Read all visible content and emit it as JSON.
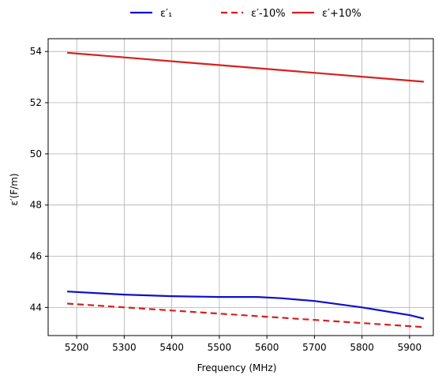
{
  "chart_data": {
    "type": "line",
    "xlabel": "Frequency (MHz)",
    "ylabel": "ε′(F/m)",
    "xlim": [
      5140,
      5950
    ],
    "ylim": [
      42.9,
      54.5
    ],
    "xticks": [
      5200,
      5300,
      5400,
      5500,
      5600,
      5700,
      5800,
      5900
    ],
    "yticks": [
      44,
      46,
      48,
      50,
      52,
      54
    ],
    "grid": true,
    "legend_position": "top-center",
    "series": [
      {
        "name": "ε′₁",
        "color": "#1010c8",
        "style": "solid",
        "x": [
          5180,
          5250,
          5300,
          5400,
          5500,
          5580,
          5630,
          5700,
          5800,
          5900,
          5930
        ],
        "y": [
          44.62,
          44.55,
          44.5,
          44.44,
          44.41,
          44.41,
          44.36,
          44.25,
          44.0,
          43.7,
          43.56
        ]
      },
      {
        "name": "ε′-10%",
        "color": "#d62020",
        "style": "dashed",
        "x": [
          5180,
          5930
        ],
        "y": [
          44.15,
          43.23
        ]
      },
      {
        "name": "ε′+10%",
        "color": "#d62020",
        "style": "solid",
        "x": [
          5180,
          5930
        ],
        "y": [
          53.95,
          52.82
        ]
      }
    ]
  }
}
